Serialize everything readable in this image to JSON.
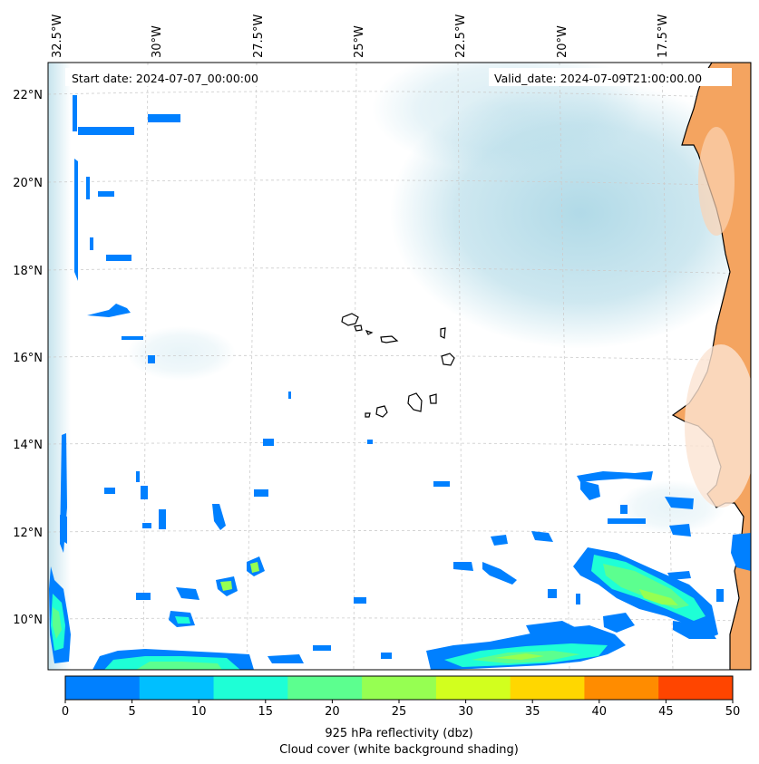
{
  "map": {
    "start_date": "Start date: 2024-07-07_00:00:00",
    "valid_date": "Valid_date: 2024-07-09T21:00:00.00",
    "lon_labels": [
      "32.5°W",
      "30°W",
      "27.5°W",
      "25°W",
      "22.5°W",
      "20°W",
      "17.5°W"
    ],
    "lat_labels": [
      "22°N",
      "20°N",
      "18°N",
      "16°N",
      "14°N",
      "12°N",
      "10°N"
    ],
    "colors": {
      "ocean": "#ffffff",
      "land": "#f4a460",
      "cloud": "#add8e6",
      "coast": "#000000",
      "grid": "#cccccc"
    }
  },
  "colorbar": {
    "ticks": [
      "0",
      "5",
      "10",
      "15",
      "20",
      "25",
      "30",
      "35",
      "40",
      "45",
      "50"
    ],
    "colors": [
      "#0080ff",
      "#00bfff",
      "#1effd6",
      "#5cff8f",
      "#96ff52",
      "#d2ff1e",
      "#ffd700",
      "#ff8c00",
      "#ff4500"
    ],
    "label": "925 hPa reflectivity (dbz)",
    "sublabel": "Cloud cover (white background shading)"
  }
}
